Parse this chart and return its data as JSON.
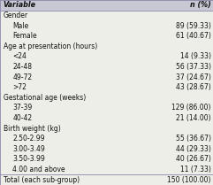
{
  "headers": [
    "Variable",
    "n (%)"
  ],
  "rows": [
    {
      "label": "Gender",
      "value": "",
      "indent": 0,
      "bold": false,
      "category": true
    },
    {
      "label": "Male",
      "value": "89 (59.33)",
      "indent": 1,
      "bold": false,
      "category": false
    },
    {
      "label": "Female",
      "value": "61 (40.67)",
      "indent": 1,
      "bold": false,
      "category": false
    },
    {
      "label": "Age at presentation (hours)",
      "value": "",
      "indent": 0,
      "bold": false,
      "category": true
    },
    {
      "label": "<24",
      "value": "14 (9.33)",
      "indent": 1,
      "bold": false,
      "category": false
    },
    {
      "label": "24-48",
      "value": "56 (37.33)",
      "indent": 1,
      "bold": false,
      "category": false
    },
    {
      "label": "49-72",
      "value": "37 (24.67)",
      "indent": 1,
      "bold": false,
      "category": false
    },
    {
      "label": ">72",
      "value": "43 (28.67)",
      "indent": 1,
      "bold": false,
      "category": false
    },
    {
      "label": "Gestational age (weeks)",
      "value": "",
      "indent": 0,
      "bold": false,
      "category": true
    },
    {
      "label": "37-39",
      "value": "129 (86.00)",
      "indent": 1,
      "bold": false,
      "category": false
    },
    {
      "label": "40-42",
      "value": "21 (14.00)",
      "indent": 1,
      "bold": false,
      "category": false
    },
    {
      "label": "Birth weight (kg)",
      "value": "",
      "indent": 0,
      "bold": false,
      "category": true
    },
    {
      "label": "2.50-2.99",
      "value": "55 (36.67)",
      "indent": 1,
      "bold": false,
      "category": false
    },
    {
      "label": "3.00-3.49",
      "value": "44 (29.33)",
      "indent": 1,
      "bold": false,
      "category": false
    },
    {
      "label": "3.50-3.99",
      "value": "40 (26.67)",
      "indent": 1,
      "bold": false,
      "category": false
    },
    {
      "label": "4.00 and above",
      "value": "11 (7.33)",
      "indent": 1,
      "bold": false,
      "category": false
    },
    {
      "label": "Total (each sub-group)",
      "value": "150 (100.00)",
      "indent": 0,
      "bold": false,
      "category": false
    }
  ],
  "header_bg": "#c8c8d4",
  "row_bg": "#eeeee8",
  "border_color": "#8888aa",
  "text_color": "#111111",
  "font_size": 5.5,
  "header_font_size": 5.8,
  "fig_width": 2.41,
  "fig_height": 2.09,
  "dpi": 100
}
